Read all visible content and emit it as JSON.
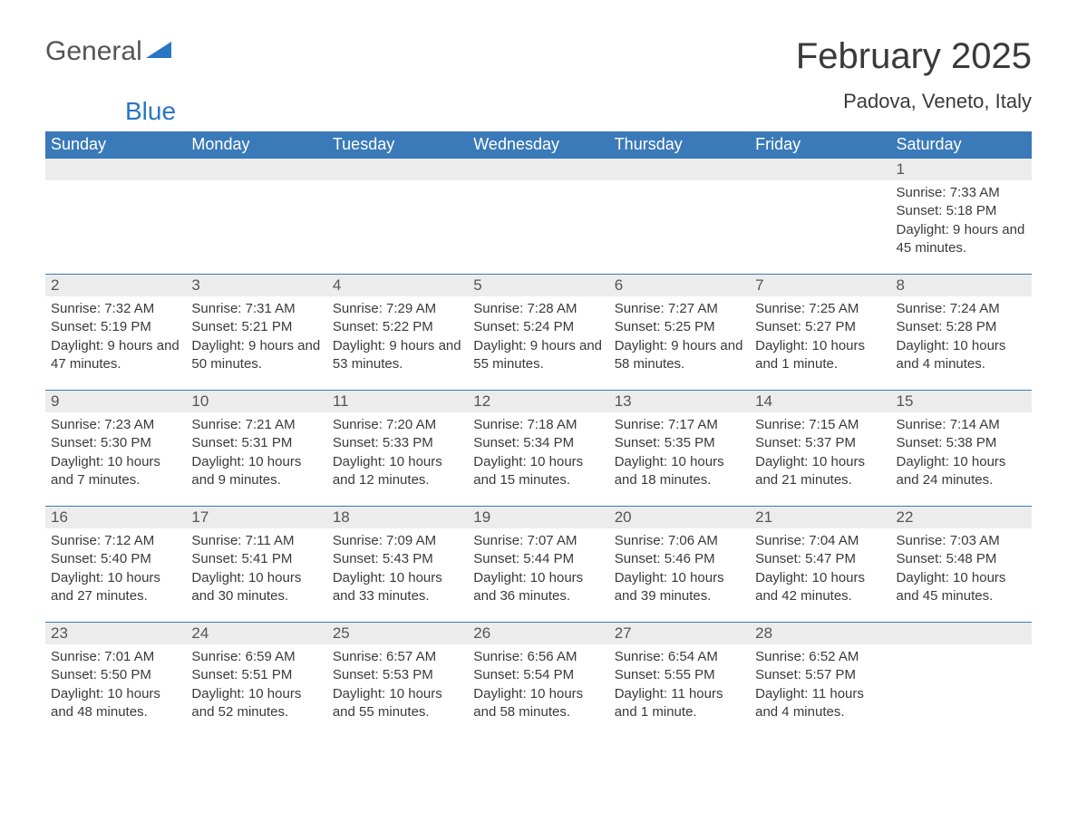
{
  "brand": {
    "part1": "General",
    "part2": "Blue"
  },
  "title": "February 2025",
  "location": "Padova, Veneto, Italy",
  "colors": {
    "header_bg": "#3a7ab8",
    "header_text": "#ffffff",
    "daynum_bg": "#ececec",
    "text": "#3a3a3a",
    "border": "#3a7ab8",
    "brand_gray": "#555555",
    "brand_blue": "#2976c4",
    "background": "#ffffff"
  },
  "typography": {
    "title_fontsize": 40,
    "location_fontsize": 22,
    "header_fontsize": 18,
    "daynum_fontsize": 17,
    "detail_fontsize": 15
  },
  "day_headers": [
    "Sunday",
    "Monday",
    "Tuesday",
    "Wednesday",
    "Thursday",
    "Friday",
    "Saturday"
  ],
  "labels": {
    "sunrise": "Sunrise: ",
    "sunset": "Sunset: ",
    "daylight": "Daylight: "
  },
  "weeks": [
    [
      null,
      null,
      null,
      null,
      null,
      null,
      {
        "n": "1",
        "sr": "7:33 AM",
        "ss": "5:18 PM",
        "dl": "9 hours and 45 minutes."
      }
    ],
    [
      {
        "n": "2",
        "sr": "7:32 AM",
        "ss": "5:19 PM",
        "dl": "9 hours and 47 minutes."
      },
      {
        "n": "3",
        "sr": "7:31 AM",
        "ss": "5:21 PM",
        "dl": "9 hours and 50 minutes."
      },
      {
        "n": "4",
        "sr": "7:29 AM",
        "ss": "5:22 PM",
        "dl": "9 hours and 53 minutes."
      },
      {
        "n": "5",
        "sr": "7:28 AM",
        "ss": "5:24 PM",
        "dl": "9 hours and 55 minutes."
      },
      {
        "n": "6",
        "sr": "7:27 AM",
        "ss": "5:25 PM",
        "dl": "9 hours and 58 minutes."
      },
      {
        "n": "7",
        "sr": "7:25 AM",
        "ss": "5:27 PM",
        "dl": "10 hours and 1 minute."
      },
      {
        "n": "8",
        "sr": "7:24 AM",
        "ss": "5:28 PM",
        "dl": "10 hours and 4 minutes."
      }
    ],
    [
      {
        "n": "9",
        "sr": "7:23 AM",
        "ss": "5:30 PM",
        "dl": "10 hours and 7 minutes."
      },
      {
        "n": "10",
        "sr": "7:21 AM",
        "ss": "5:31 PM",
        "dl": "10 hours and 9 minutes."
      },
      {
        "n": "11",
        "sr": "7:20 AM",
        "ss": "5:33 PM",
        "dl": "10 hours and 12 minutes."
      },
      {
        "n": "12",
        "sr": "7:18 AM",
        "ss": "5:34 PM",
        "dl": "10 hours and 15 minutes."
      },
      {
        "n": "13",
        "sr": "7:17 AM",
        "ss": "5:35 PM",
        "dl": "10 hours and 18 minutes."
      },
      {
        "n": "14",
        "sr": "7:15 AM",
        "ss": "5:37 PM",
        "dl": "10 hours and 21 minutes."
      },
      {
        "n": "15",
        "sr": "7:14 AM",
        "ss": "5:38 PM",
        "dl": "10 hours and 24 minutes."
      }
    ],
    [
      {
        "n": "16",
        "sr": "7:12 AM",
        "ss": "5:40 PM",
        "dl": "10 hours and 27 minutes."
      },
      {
        "n": "17",
        "sr": "7:11 AM",
        "ss": "5:41 PM",
        "dl": "10 hours and 30 minutes."
      },
      {
        "n": "18",
        "sr": "7:09 AM",
        "ss": "5:43 PM",
        "dl": "10 hours and 33 minutes."
      },
      {
        "n": "19",
        "sr": "7:07 AM",
        "ss": "5:44 PM",
        "dl": "10 hours and 36 minutes."
      },
      {
        "n": "20",
        "sr": "7:06 AM",
        "ss": "5:46 PM",
        "dl": "10 hours and 39 minutes."
      },
      {
        "n": "21",
        "sr": "7:04 AM",
        "ss": "5:47 PM",
        "dl": "10 hours and 42 minutes."
      },
      {
        "n": "22",
        "sr": "7:03 AM",
        "ss": "5:48 PM",
        "dl": "10 hours and 45 minutes."
      }
    ],
    [
      {
        "n": "23",
        "sr": "7:01 AM",
        "ss": "5:50 PM",
        "dl": "10 hours and 48 minutes."
      },
      {
        "n": "24",
        "sr": "6:59 AM",
        "ss": "5:51 PM",
        "dl": "10 hours and 52 minutes."
      },
      {
        "n": "25",
        "sr": "6:57 AM",
        "ss": "5:53 PM",
        "dl": "10 hours and 55 minutes."
      },
      {
        "n": "26",
        "sr": "6:56 AM",
        "ss": "5:54 PM",
        "dl": "10 hours and 58 minutes."
      },
      {
        "n": "27",
        "sr": "6:54 AM",
        "ss": "5:55 PM",
        "dl": "11 hours and 1 minute."
      },
      {
        "n": "28",
        "sr": "6:52 AM",
        "ss": "5:57 PM",
        "dl": "11 hours and 4 minutes."
      },
      null
    ]
  ]
}
